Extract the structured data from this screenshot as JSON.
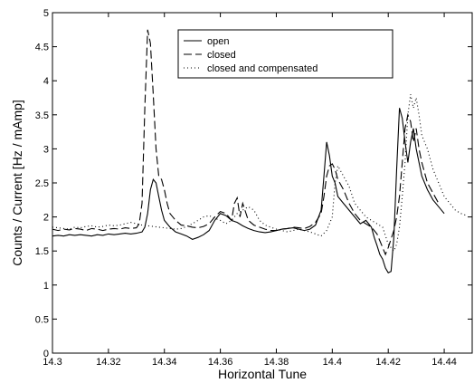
{
  "chart_data": {
    "type": "line",
    "title": "",
    "xlabel": "Horizontal Tune",
    "ylabel": "Counts / Current  [Hz / mAmp]",
    "xlim": [
      14.3,
      14.45
    ],
    "ylim": [
      0,
      5
    ],
    "xticks": [
      14.3,
      14.32,
      14.34,
      14.36,
      14.38,
      14.4,
      14.42,
      14.44
    ],
    "xtick_labels": [
      "14.3",
      "14.32",
      "14.34",
      "14.36",
      "14.38",
      "14.4",
      "14.42",
      "14.44"
    ],
    "yticks": [
      0,
      0.5,
      1,
      1.5,
      2,
      2.5,
      3,
      3.5,
      4,
      4.5,
      5
    ],
    "ytick_labels": [
      "0",
      "0.5",
      "1",
      "1.5",
      "2",
      "2.5",
      "3",
      "3.5",
      "4",
      "4.5",
      "5"
    ],
    "grid": false,
    "legend_position": "top-center",
    "series": [
      {
        "name": "open",
        "style": "solid",
        "color": "#000000",
        "points": [
          [
            14.3,
            1.72
          ],
          [
            14.302,
            1.73
          ],
          [
            14.304,
            1.72
          ],
          [
            14.306,
            1.74
          ],
          [
            14.308,
            1.73
          ],
          [
            14.31,
            1.74
          ],
          [
            14.312,
            1.73
          ],
          [
            14.314,
            1.72
          ],
          [
            14.316,
            1.74
          ],
          [
            14.318,
            1.73
          ],
          [
            14.32,
            1.75
          ],
          [
            14.322,
            1.74
          ],
          [
            14.324,
            1.75
          ],
          [
            14.326,
            1.76
          ],
          [
            14.328,
            1.75
          ],
          [
            14.33,
            1.76
          ],
          [
            14.332,
            1.78
          ],
          [
            14.333,
            1.85
          ],
          [
            14.334,
            2.05
          ],
          [
            14.335,
            2.4
          ],
          [
            14.336,
            2.55
          ],
          [
            14.337,
            2.5
          ],
          [
            14.338,
            2.3
          ],
          [
            14.339,
            2.1
          ],
          [
            14.34,
            1.95
          ],
          [
            14.342,
            1.85
          ],
          [
            14.344,
            1.78
          ],
          [
            14.346,
            1.75
          ],
          [
            14.348,
            1.72
          ],
          [
            14.35,
            1.67
          ],
          [
            14.352,
            1.7
          ],
          [
            14.354,
            1.74
          ],
          [
            14.356,
            1.8
          ],
          [
            14.358,
            1.95
          ],
          [
            14.36,
            2.05
          ],
          [
            14.362,
            2.02
          ],
          [
            14.364,
            1.95
          ],
          [
            14.366,
            1.92
          ],
          [
            14.368,
            1.87
          ],
          [
            14.37,
            1.83
          ],
          [
            14.372,
            1.8
          ],
          [
            14.374,
            1.78
          ],
          [
            14.376,
            1.77
          ],
          [
            14.378,
            1.78
          ],
          [
            14.38,
            1.8
          ],
          [
            14.382,
            1.82
          ],
          [
            14.384,
            1.83
          ],
          [
            14.386,
            1.84
          ],
          [
            14.388,
            1.82
          ],
          [
            14.39,
            1.8
          ],
          [
            14.392,
            1.82
          ],
          [
            14.394,
            1.88
          ],
          [
            14.396,
            2.1
          ],
          [
            14.397,
            2.6
          ],
          [
            14.398,
            3.1
          ],
          [
            14.399,
            2.9
          ],
          [
            14.4,
            2.6
          ],
          [
            14.401,
            2.5
          ],
          [
            14.402,
            2.3
          ],
          [
            14.404,
            2.2
          ],
          [
            14.406,
            2.1
          ],
          [
            14.408,
            2.0
          ],
          [
            14.41,
            1.9
          ],
          [
            14.412,
            1.95
          ],
          [
            14.414,
            1.85
          ],
          [
            14.415,
            1.7
          ],
          [
            14.416,
            1.58
          ],
          [
            14.417,
            1.45
          ],
          [
            14.418,
            1.38
          ],
          [
            14.419,
            1.25
          ],
          [
            14.42,
            1.18
          ],
          [
            14.421,
            1.2
          ],
          [
            14.422,
            1.7
          ],
          [
            14.423,
            2.7
          ],
          [
            14.424,
            3.6
          ],
          [
            14.425,
            3.45
          ],
          [
            14.426,
            3.1
          ],
          [
            14.427,
            2.8
          ],
          [
            14.428,
            3.1
          ],
          [
            14.429,
            3.3
          ],
          [
            14.43,
            3.0
          ],
          [
            14.431,
            2.8
          ],
          [
            14.432,
            2.6
          ],
          [
            14.434,
            2.4
          ],
          [
            14.436,
            2.25
          ],
          [
            14.438,
            2.15
          ],
          [
            14.44,
            2.05
          ]
        ]
      },
      {
        "name": "closed",
        "style": "dashed",
        "color": "#000000",
        "points": [
          [
            14.3,
            1.82
          ],
          [
            14.302,
            1.8
          ],
          [
            14.304,
            1.82
          ],
          [
            14.306,
            1.81
          ],
          [
            14.308,
            1.83
          ],
          [
            14.31,
            1.82
          ],
          [
            14.312,
            1.8
          ],
          [
            14.314,
            1.83
          ],
          [
            14.316,
            1.82
          ],
          [
            14.318,
            1.8
          ],
          [
            14.32,
            1.82
          ],
          [
            14.322,
            1.83
          ],
          [
            14.324,
            1.82
          ],
          [
            14.326,
            1.84
          ],
          [
            14.328,
            1.83
          ],
          [
            14.33,
            1.84
          ],
          [
            14.331,
            1.9
          ],
          [
            14.332,
            2.2
          ],
          [
            14.333,
            3.6
          ],
          [
            14.334,
            4.75
          ],
          [
            14.335,
            4.55
          ],
          [
            14.336,
            3.8
          ],
          [
            14.337,
            3.0
          ],
          [
            14.338,
            2.6
          ],
          [
            14.339,
            2.55
          ],
          [
            14.34,
            2.4
          ],
          [
            14.341,
            2.2
          ],
          [
            14.342,
            2.05
          ],
          [
            14.344,
            1.95
          ],
          [
            14.346,
            1.88
          ],
          [
            14.348,
            1.87
          ],
          [
            14.35,
            1.85
          ],
          [
            14.352,
            1.84
          ],
          [
            14.354,
            1.86
          ],
          [
            14.356,
            1.9
          ],
          [
            14.358,
            2.0
          ],
          [
            14.36,
            2.08
          ],
          [
            14.362,
            2.05
          ],
          [
            14.364,
            1.95
          ],
          [
            14.365,
            2.2
          ],
          [
            14.366,
            2.28
          ],
          [
            14.367,
            2.0
          ],
          [
            14.368,
            2.2
          ],
          [
            14.37,
            1.95
          ],
          [
            14.372,
            1.88
          ],
          [
            14.374,
            1.85
          ],
          [
            14.376,
            1.82
          ],
          [
            14.378,
            1.8
          ],
          [
            14.38,
            1.8
          ],
          [
            14.382,
            1.82
          ],
          [
            14.384,
            1.83
          ],
          [
            14.386,
            1.85
          ],
          [
            14.388,
            1.84
          ],
          [
            14.39,
            1.83
          ],
          [
            14.392,
            1.86
          ],
          [
            14.394,
            1.92
          ],
          [
            14.396,
            2.05
          ],
          [
            14.397,
            2.3
          ],
          [
            14.398,
            2.6
          ],
          [
            14.399,
            2.75
          ],
          [
            14.4,
            2.78
          ],
          [
            14.401,
            2.7
          ],
          [
            14.402,
            2.55
          ],
          [
            14.404,
            2.4
          ],
          [
            14.406,
            2.2
          ],
          [
            14.408,
            2.05
          ],
          [
            14.41,
            1.95
          ],
          [
            14.412,
            1.9
          ],
          [
            14.414,
            1.85
          ],
          [
            14.416,
            1.75
          ],
          [
            14.418,
            1.55
          ],
          [
            14.419,
            1.45
          ],
          [
            14.42,
            1.55
          ],
          [
            14.422,
            1.8
          ],
          [
            14.423,
            2.0
          ],
          [
            14.424,
            2.3
          ],
          [
            14.425,
            2.8
          ],
          [
            14.426,
            3.3
          ],
          [
            14.427,
            3.5
          ],
          [
            14.428,
            3.4
          ],
          [
            14.429,
            3.1
          ],
          [
            14.43,
            3.3
          ],
          [
            14.431,
            3.0
          ],
          [
            14.432,
            2.8
          ],
          [
            14.434,
            2.5
          ],
          [
            14.436,
            2.35
          ],
          [
            14.438,
            2.2
          ]
        ]
      },
      {
        "name": "closed and compensated",
        "style": "dotted",
        "color": "#000000",
        "points": [
          [
            14.3,
            1.85
          ],
          [
            14.302,
            1.84
          ],
          [
            14.304,
            1.83
          ],
          [
            14.306,
            1.82
          ],
          [
            14.308,
            1.85
          ],
          [
            14.31,
            1.84
          ],
          [
            14.312,
            1.86
          ],
          [
            14.314,
            1.87
          ],
          [
            14.316,
            1.85
          ],
          [
            14.318,
            1.86
          ],
          [
            14.32,
            1.88
          ],
          [
            14.322,
            1.87
          ],
          [
            14.324,
            1.88
          ],
          [
            14.326,
            1.9
          ],
          [
            14.328,
            1.92
          ],
          [
            14.33,
            1.9
          ],
          [
            14.332,
            1.88
          ],
          [
            14.334,
            1.87
          ],
          [
            14.336,
            1.86
          ],
          [
            14.338,
            1.85
          ],
          [
            14.34,
            1.84
          ],
          [
            14.342,
            1.83
          ],
          [
            14.344,
            1.82
          ],
          [
            14.346,
            1.83
          ],
          [
            14.348,
            1.86
          ],
          [
            14.35,
            1.9
          ],
          [
            14.352,
            1.95
          ],
          [
            14.354,
            2.0
          ],
          [
            14.356,
            2.02
          ],
          [
            14.358,
            1.98
          ],
          [
            14.36,
            1.95
          ],
          [
            14.362,
            1.9
          ],
          [
            14.364,
            1.95
          ],
          [
            14.366,
            2.05
          ],
          [
            14.368,
            2.1
          ],
          [
            14.37,
            2.15
          ],
          [
            14.372,
            2.1
          ],
          [
            14.374,
            1.95
          ],
          [
            14.376,
            1.88
          ],
          [
            14.378,
            1.85
          ],
          [
            14.38,
            1.82
          ],
          [
            14.382,
            1.8
          ],
          [
            14.384,
            1.78
          ],
          [
            14.386,
            1.8
          ],
          [
            14.388,
            1.82
          ],
          [
            14.39,
            1.8
          ],
          [
            14.392,
            1.78
          ],
          [
            14.394,
            1.75
          ],
          [
            14.396,
            1.72
          ],
          [
            14.398,
            1.8
          ],
          [
            14.4,
            2.0
          ],
          [
            14.401,
            2.5
          ],
          [
            14.402,
            2.75
          ],
          [
            14.404,
            2.6
          ],
          [
            14.406,
            2.45
          ],
          [
            14.408,
            2.2
          ],
          [
            14.41,
            2.1
          ],
          [
            14.412,
            2.0
          ],
          [
            14.414,
            1.95
          ],
          [
            14.416,
            1.9
          ],
          [
            14.418,
            1.85
          ],
          [
            14.42,
            1.6
          ],
          [
            14.422,
            1.5
          ],
          [
            14.423,
            1.6
          ],
          [
            14.424,
            1.85
          ],
          [
            14.425,
            2.3
          ],
          [
            14.426,
            2.8
          ],
          [
            14.427,
            3.5
          ],
          [
            14.428,
            3.8
          ],
          [
            14.429,
            3.6
          ],
          [
            14.43,
            3.75
          ],
          [
            14.431,
            3.5
          ],
          [
            14.432,
            3.2
          ],
          [
            14.434,
            3.0
          ],
          [
            14.436,
            2.7
          ],
          [
            14.438,
            2.5
          ],
          [
            14.44,
            2.3
          ],
          [
            14.442,
            2.2
          ],
          [
            14.444,
            2.1
          ],
          [
            14.446,
            2.05
          ],
          [
            14.448,
            2.02
          ]
        ]
      }
    ]
  }
}
